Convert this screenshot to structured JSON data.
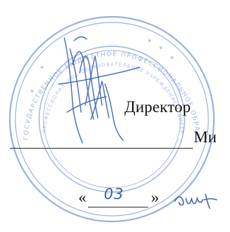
{
  "document": {
    "approval_title": "Директор",
    "director_surname_fragment": "Ми",
    "date_open_quote": "«",
    "date_day": "03",
    "date_close_quote": "»"
  },
  "seal": {
    "description_icon": "round-stamp-seal",
    "color": "#4a6fc0",
    "ring_text": "ГОСУДАРСТВЕННОЕ БЮДЖЕТНОЕ ПРОФЕССИОНАЛЬНОЕ ОБРАЗОВАТЕЛЬНОЕ УЧРЕЖДЕНИЕ"
  },
  "signature": {
    "icon": "handwritten-signature",
    "color": "#3c64b4"
  }
}
